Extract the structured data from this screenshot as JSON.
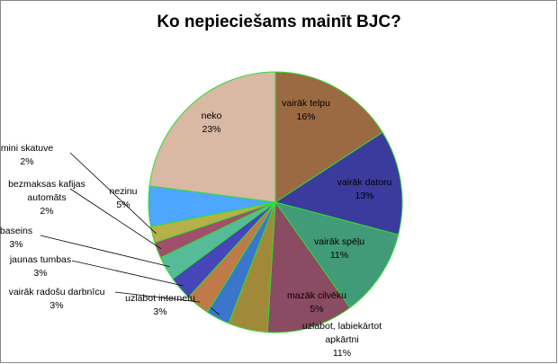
{
  "chart_data": {
    "type": "pie",
    "title": "Ko nepieciešams mainīt BJC?",
    "categories": [
      "vairāk telpu",
      "vairāk datoru",
      "vairāk spēļu",
      "uzlabot, labiekārtot apkārtni",
      "mazāk cilvēku",
      "uzlabot internetu",
      "vairāk radošu darbnīcu",
      "jaunas tumbas",
      "baseins",
      "bezmaksas kafijas automāts",
      "mini skatuve",
      "nezinu",
      "neko"
    ],
    "values": [
      16,
      13,
      11,
      11,
      5,
      3,
      3,
      3,
      3,
      2,
      2,
      5,
      23
    ],
    "value_labels": [
      "16%",
      "13%",
      "11%",
      "11%",
      "5%",
      "3%",
      "3%",
      "3%",
      "3%",
      "2%",
      "2%",
      "5%",
      "23%"
    ],
    "colors": [
      "#9b6a43",
      "#3b3b9e",
      "#419a78",
      "#8b4b62",
      "#a08a3a",
      "#3a76cc",
      "#c07a4a",
      "#4646b8",
      "#55bb99",
      "#a0506a",
      "#b8b04a",
      "#4da6ff",
      "#d9b8a4"
    ]
  }
}
